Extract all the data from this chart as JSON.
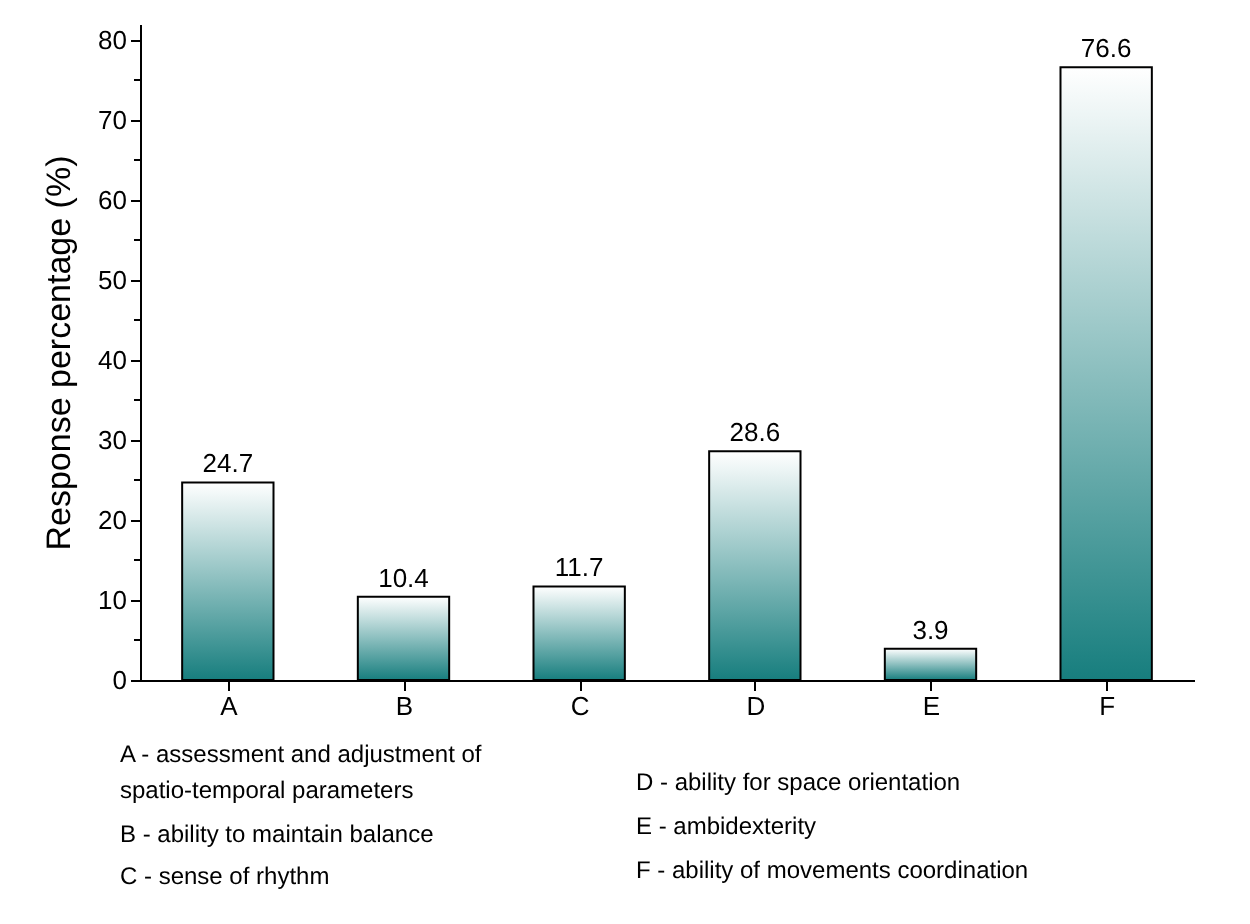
{
  "chart_data": {
    "type": "bar",
    "categories": [
      "A",
      "B",
      "C",
      "D",
      "E",
      "F"
    ],
    "values": [
      24.7,
      10.4,
      11.7,
      28.6,
      3.9,
      76.6
    ],
    "color": "#177e7e",
    "ylabel": "Response percentage (%)",
    "ylim": [
      0,
      82
    ],
    "yticks": [
      0,
      {
        "value": 5,
        "label": null
      },
      10,
      {
        "value": 15,
        "label": null
      },
      20,
      {
        "value": 25,
        "label": null
      },
      30,
      {
        "value": 35,
        "label": null
      },
      40,
      {
        "value": 45,
        "label": null
      },
      50,
      {
        "value": 55,
        "label": null
      },
      60,
      {
        "value": 65,
        "label": null
      },
      70,
      {
        "value": 75,
        "label": null
      },
      80
    ],
    "data_labels": true,
    "grid": false,
    "annotations": [
      "A - assessment and adjustment of spatio-temporal parameters",
      "B - ability to maintain balance",
      "C - sense of rhythm",
      "D - ability for space orientation",
      "E - ambidexterity",
      "F - ability of movements coordination"
    ]
  }
}
